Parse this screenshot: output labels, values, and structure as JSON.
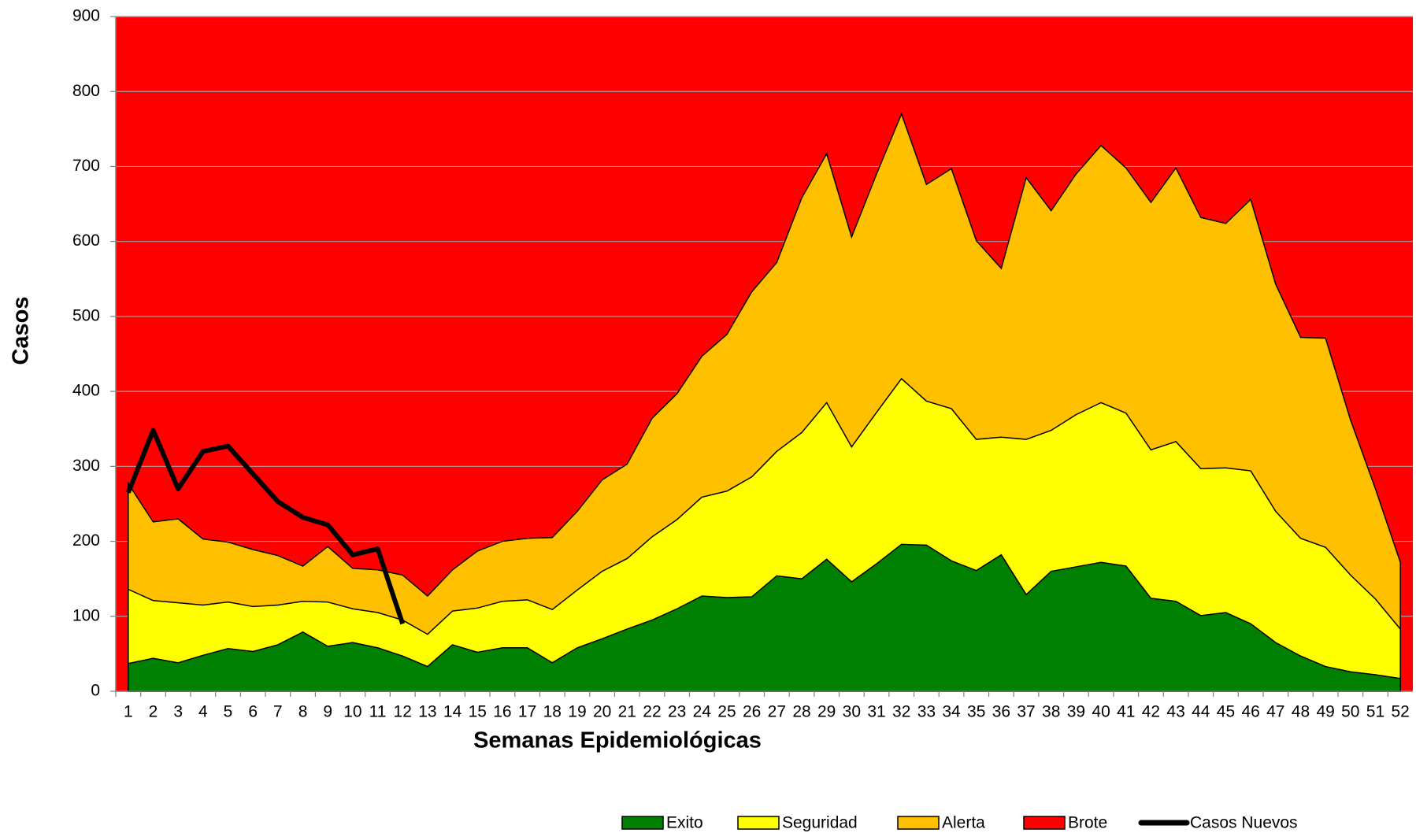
{
  "chart_data": {
    "type": "area",
    "y_label": "Casos",
    "x_label": "Semanas Epidemiológicas",
    "categories": [
      "1",
      "2",
      "3",
      "4",
      "5",
      "6",
      "7",
      "8",
      "9",
      "10",
      "11",
      "12",
      "13",
      "14",
      "15",
      "16",
      "17",
      "18",
      "19",
      "20",
      "21",
      "22",
      "23",
      "24",
      "25",
      "26",
      "27",
      "28",
      "29",
      "30",
      "31",
      "32",
      "33",
      "34",
      "35",
      "36",
      "37",
      "38",
      "39",
      "40",
      "41",
      "42",
      "43",
      "44",
      "45",
      "46",
      "47",
      "48",
      "49",
      "50",
      "51",
      "52"
    ],
    "ylim": [
      0,
      900
    ],
    "yticks": [
      0,
      100,
      200,
      300,
      400,
      500,
      600,
      700,
      800,
      900
    ],
    "grid": true,
    "legend": "bottom",
    "series": [
      {
        "name": "Exito",
        "color": "#008000",
        "kind": "area",
        "values": [
          37,
          44,
          38,
          48,
          57,
          53,
          62,
          79,
          60,
          65,
          58,
          47,
          33,
          62,
          52,
          58,
          58,
          38,
          58,
          70,
          83,
          95,
          110,
          127,
          125,
          126,
          154,
          150,
          176,
          146,
          170,
          196,
          195,
          174,
          161,
          182,
          129,
          160,
          166,
          172,
          167,
          124,
          120,
          101,
          105,
          90,
          65,
          47,
          33,
          26,
          22,
          17
        ]
      },
      {
        "name": "Seguridad",
        "color": "#ffff00",
        "kind": "area",
        "values": [
          136,
          121,
          118,
          115,
          119,
          113,
          115,
          120,
          119,
          110,
          105,
          95,
          76,
          107,
          111,
          120,
          122,
          109,
          135,
          160,
          177,
          206,
          229,
          259,
          267,
          286,
          320,
          345,
          385,
          326,
          372,
          417,
          387,
          377,
          336,
          339,
          336,
          348,
          369,
          385,
          371,
          322,
          333,
          297,
          298,
          294,
          240,
          204,
          192,
          155,
          123,
          83
        ]
      },
      {
        "name": "Alerta",
        "color": "#ffc000",
        "kind": "area",
        "values": [
          277,
          226,
          230,
          203,
          199,
          189,
          181,
          167,
          193,
          164,
          162,
          155,
          127,
          162,
          187,
          200,
          204,
          205,
          240,
          282,
          303,
          364,
          397,
          447,
          476,
          533,
          572,
          658,
          717,
          606,
          690,
          770,
          676,
          697,
          601,
          564,
          685,
          641,
          690,
          728,
          698,
          652,
          698,
          632,
          624,
          656,
          543,
          472,
          471,
          362,
          270,
          172
        ]
      },
      {
        "name": "Brote",
        "color": "#ff0000",
        "kind": "background"
      },
      {
        "name": "Casos Nuevos",
        "color": "#000000",
        "kind": "line",
        "values": [
          265,
          348,
          270,
          320,
          327,
          290,
          253,
          232,
          222,
          182,
          190,
          90,
          null,
          null,
          null,
          null,
          null,
          null,
          null,
          null,
          null,
          null,
          null,
          null,
          null,
          null,
          null,
          null,
          null,
          null,
          null,
          null,
          null,
          null,
          null,
          null,
          null,
          null,
          null,
          null,
          null,
          null,
          null,
          null,
          null,
          null,
          null,
          null,
          null,
          null,
          null,
          null
        ]
      }
    ]
  }
}
